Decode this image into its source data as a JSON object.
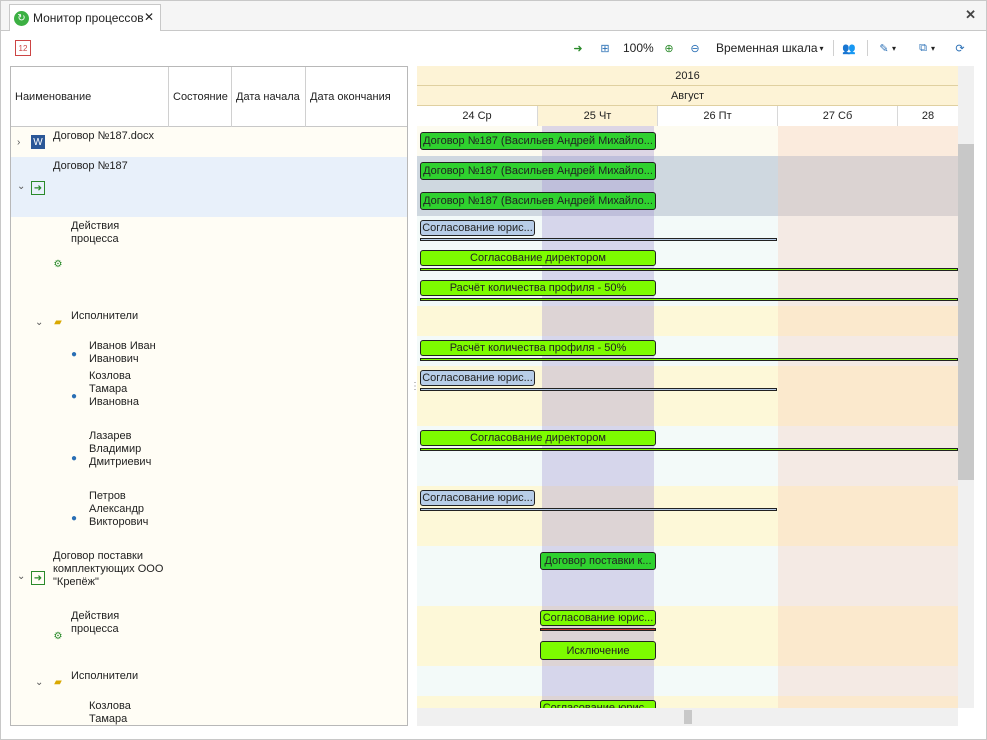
{
  "tab": {
    "title": "Монитор процессов",
    "close": "✕"
  },
  "window_close": "✕",
  "toolbar": {
    "zoom": "100%",
    "scale_label": "Временная шкала",
    "scale_arrow": "▾"
  },
  "grid": {
    "columns": [
      "Наименование",
      "Состояние",
      "Дата начала",
      "Дата окончания"
    ],
    "rows": [
      {
        "label": "Договор №187.docx"
      },
      {
        "label": "Договор №187"
      },
      {
        "label": "Действия\nпроцесса"
      },
      {
        "label": "Исполнители"
      },
      {
        "label": "Иванов Иван\nИванович"
      },
      {
        "label": "Козлова\nТамара\nИвановна"
      },
      {
        "label": "Лазарев\nВладимир\nДмитриевич"
      },
      {
        "label": "Петров\nАлександр\nВикторович"
      },
      {
        "label": "Договор поставки\nкомплектующих ООО\n\"Крепёж\""
      },
      {
        "label": "Действия\nпроцесса"
      },
      {
        "label": "Исполнители"
      },
      {
        "label": "Козлова\nТамара"
      }
    ]
  },
  "gantt": {
    "year": "2016",
    "month": "Август",
    "days": [
      "24 Ср",
      "25 Чт",
      "26 Пт",
      "27 Сб",
      "28"
    ],
    "bars": [
      "Договор №187 (Васильев Андрей Михайло...",
      "Договор №187 (Васильев Андрей Михайло...",
      "Договор №187 (Васильев Андрей Михайло...",
      "Согласование юрис...",
      "Согласование директором",
      "Расчёт количества профиля - 50%",
      "Расчёт количества профиля - 50%",
      "Согласование юрис...",
      "Согласование директором",
      "Согласование юрис...",
      "Договор поставки к...",
      "Согласование юрис...",
      "Исключение",
      "Согласование юрис..."
    ]
  },
  "colors": {
    "bar_green": "#2fd12f",
    "bar_lime": "#7dfc00",
    "bar_blue": "#b7cde8",
    "weekend": "#fbeee6",
    "highlight": "#cfc8e6"
  }
}
